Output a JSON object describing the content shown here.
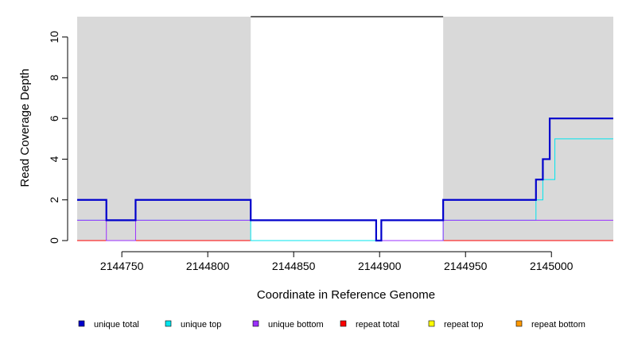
{
  "chart_data": {
    "type": "line",
    "title": "",
    "xlabel": "Coordinate in Reference Genome",
    "ylabel": "Read Coverage Depth",
    "xlim": [
      2144724,
      2145036
    ],
    "ylim": [
      0,
      11
    ],
    "x_ticks": [
      2144750,
      2144800,
      2144850,
      2144900,
      2144950,
      2145000
    ],
    "y_ticks": [
      0,
      2,
      4,
      6,
      8,
      10
    ],
    "grid": false,
    "background_color": "#d9d9d9",
    "unshaded_region": {
      "x": [
        2144825,
        2144937
      ],
      "marker_y": 11
    },
    "legend_position": "bottom",
    "series": [
      {
        "name": "unique total",
        "color": "#0000cc",
        "steps": [
          [
            2144724,
            2
          ],
          [
            2144741,
            1
          ],
          [
            2144758,
            2
          ],
          [
            2144825,
            1
          ],
          [
            2144898,
            0
          ],
          [
            2144901,
            1
          ],
          [
            2144937,
            2
          ],
          [
            2144991,
            3
          ],
          [
            2144995,
            4
          ],
          [
            2144999,
            6
          ],
          [
            2145036,
            6
          ]
        ]
      },
      {
        "name": "unique top",
        "color": "#00e5ee",
        "steps": [
          [
            2144724,
            1
          ],
          [
            2144741,
            1
          ],
          [
            2144758,
            1
          ],
          [
            2144825,
            0
          ],
          [
            2144937,
            1
          ],
          [
            2144991,
            2
          ],
          [
            2144995,
            3
          ],
          [
            2145002,
            5
          ],
          [
            2145036,
            5
          ]
        ]
      },
      {
        "name": "unique bottom",
        "color": "#9b30ff",
        "steps": [
          [
            2144724,
            1
          ],
          [
            2144741,
            0
          ],
          [
            2144758,
            1
          ],
          [
            2144898,
            0
          ],
          [
            2144901,
            0
          ],
          [
            2144937,
            1
          ],
          [
            2145036,
            1
          ]
        ]
      },
      {
        "name": "repeat total",
        "color": "#ff0000",
        "steps": [
          [
            2144724,
            0
          ],
          [
            2145036,
            0
          ]
        ]
      },
      {
        "name": "repeat top",
        "color": "#ffff00",
        "steps": [
          [
            2144724,
            0
          ],
          [
            2145036,
            0
          ]
        ]
      },
      {
        "name": "repeat bottom",
        "color": "#ff9900",
        "steps": [
          [
            2144724,
            0
          ],
          [
            2145036,
            0
          ]
        ]
      }
    ]
  }
}
